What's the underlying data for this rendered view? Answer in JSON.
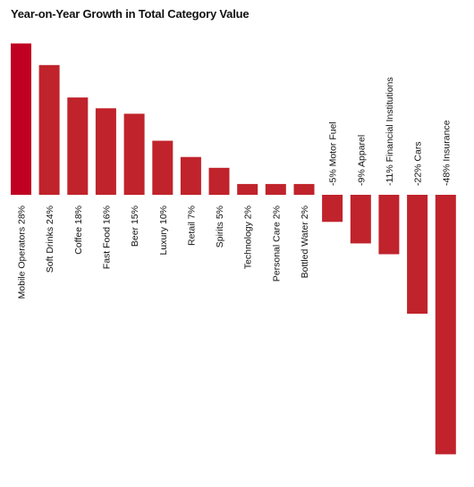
{
  "chart_data": {
    "type": "bar",
    "title": "Year-on-Year Growth in Total Category Value",
    "categories": [
      "Mobile Operators",
      "Soft Drinks",
      "Coffee",
      "Fast Food",
      "Beer",
      "Luxury",
      "Retail",
      "Spirits",
      "Technology",
      "Personal Care",
      "Bottled Water",
      "Motor Fuel",
      "Apparel",
      "Financial Institutions",
      "Cars",
      "Insurance"
    ],
    "values": [
      28,
      24,
      18,
      16,
      15,
      10,
      7,
      5,
      2,
      2,
      2,
      -5,
      -9,
      -11,
      -22,
      -48
    ],
    "value_labels": [
      "28%",
      "24%",
      "18%",
      "16%",
      "15%",
      "10%",
      "7%",
      "5%",
      "2%",
      "2%",
      "2%",
      "-5%",
      "-9%",
      "-11%",
      "-22%",
      "-48%"
    ],
    "xlabel": "",
    "ylabel": "",
    "ylim": [
      -48,
      28
    ],
    "grid": false,
    "legend": "none",
    "colors": {
      "bar": "#c0232b",
      "highlight": "#c00022"
    }
  }
}
